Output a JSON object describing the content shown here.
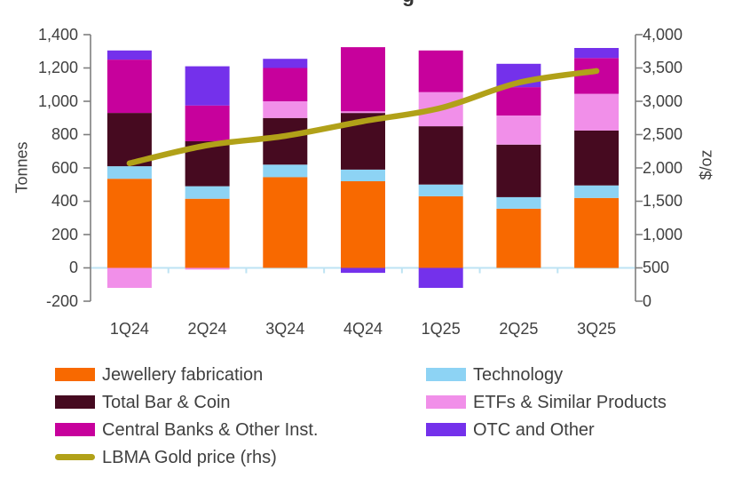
{
  "title_fragment": "g",
  "chart_data": {
    "type": "bar",
    "subtype": "stacked-column-with-line",
    "categories": [
      "1Q24",
      "2Q24",
      "3Q24",
      "4Q24",
      "1Q25",
      "2Q25",
      "3Q25"
    ],
    "bar_series": [
      {
        "name": "Jewellery fabrication",
        "color": "#F86900",
        "values": [
          535,
          415,
          545,
          520,
          430,
          355,
          420
        ]
      },
      {
        "name": "Technology",
        "color": "#8DD3F4",
        "values": [
          75,
          75,
          75,
          70,
          70,
          70,
          75
        ]
      },
      {
        "name": "Total Bar & Coin",
        "color": "#460A20",
        "values": [
          320,
          270,
          280,
          340,
          350,
          315,
          330
        ]
      },
      {
        "name": "ETFs & Similar Products",
        "color": "#F18FE9",
        "values": [
          -120,
          -10,
          100,
          10,
          205,
          175,
          220
        ]
      },
      {
        "name": "Central Banks & Other Inst.",
        "color": "#C7019C",
        "values": [
          320,
          215,
          200,
          385,
          250,
          170,
          215
        ]
      },
      {
        "name": "OTC and Other",
        "color": "#7431EB",
        "values": [
          55,
          235,
          55,
          -30,
          -120,
          140,
          60
        ]
      }
    ],
    "line_series": {
      "name": "LBMA Gold price (rhs)",
      "color": "#B1A118",
      "values": [
        2070,
        2340,
        2480,
        2700,
        2900,
        3280,
        3455
      ]
    },
    "left_axis": {
      "label": "Tonnes",
      "min": -200,
      "max": 1400,
      "step": 200,
      "tick_labels": [
        "1,400",
        "1,200",
        "1,000",
        "800",
        "600",
        "400",
        "200",
        "0",
        "-200"
      ]
    },
    "right_axis": {
      "label": "$/oz",
      "min": 0,
      "max": 4000,
      "step": 500,
      "tick_labels": [
        "4,000",
        "3,500",
        "3,000",
        "2,500",
        "2,000",
        "1,500",
        "1,000",
        "500",
        "0"
      ]
    },
    "gridlines": false,
    "legend_position": "bottom",
    "legend_columns": [
      [
        {
          "label": "Jewellery fabrication",
          "color": "#F86900",
          "swatch": "rect"
        },
        {
          "label": "Total Bar & Coin",
          "color": "#460A20",
          "swatch": "rect"
        },
        {
          "label": "Central Banks & Other Inst.",
          "color": "#C7019C",
          "swatch": "rect"
        },
        {
          "label": "LBMA Gold price (rhs)",
          "color": "#B1A118",
          "swatch": "line"
        }
      ],
      [
        {
          "label": "Technology",
          "color": "#8DD3F4",
          "swatch": "rect"
        },
        {
          "label": "ETFs & Similar Products",
          "color": "#F18FE9",
          "swatch": "rect"
        },
        {
          "label": "OTC and Other",
          "color": "#7431EB",
          "swatch": "rect"
        }
      ]
    ],
    "colors": {
      "axis": "#7F7F7F",
      "text": "#404040",
      "zero_line": "#BEE3F3"
    }
  }
}
